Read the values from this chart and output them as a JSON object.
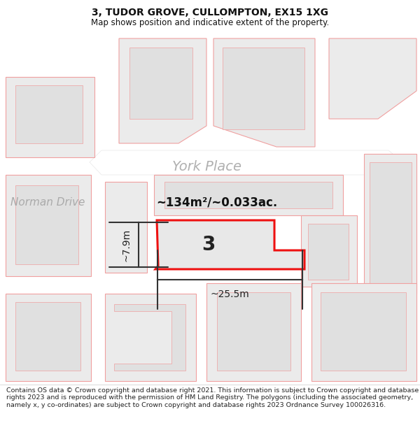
{
  "title": "3, TUDOR GROVE, CULLOMPTON, EX15 1XG",
  "subtitle": "Map shows position and indicative extent of the property.",
  "footer": "Contains OS data © Crown copyright and database right 2021. This information is subject to Crown copyright and database rights 2023 and is reproduced with the permission of HM Land Registry. The polygons (including the associated geometry, namely x, y co-ordinates) are subject to Crown copyright and database rights 2023 Ordnance Survey 100026316.",
  "area_text": "~134m²/~0.033ac.",
  "plot_number": "3",
  "dim_width": "~25.5m",
  "dim_height": "~7.9m",
  "road1_label": "Norman Drive",
  "road2_label": "York Place",
  "map_bg": "#f7f7f7",
  "road_fill": "#ffffff",
  "plot_bg_fill": "#ebebeb",
  "plot_bg_stroke": "#f0a0a0",
  "hl_fill": "#e8e8e8",
  "hl_stroke": "#ee1111",
  "title_fontsize": 10,
  "subtitle_fontsize": 8.5,
  "footer_fontsize": 6.8
}
